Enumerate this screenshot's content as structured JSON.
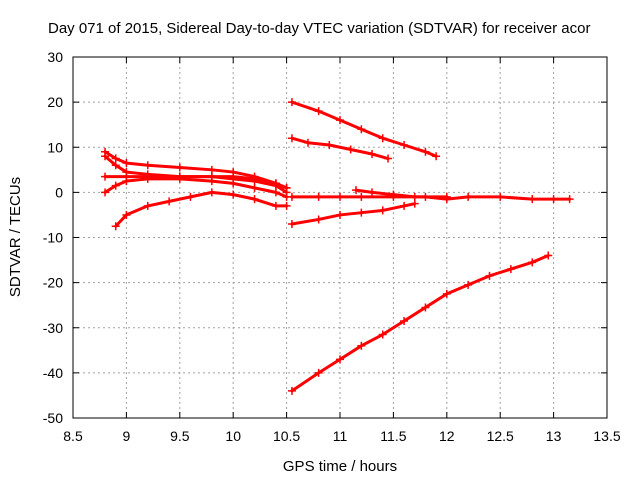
{
  "chart_data": {
    "type": "scatter",
    "title": "Day 071 of 2015, Sidereal Day-to-day VTEC variation (SDTVAR) for receiver acor",
    "xlabel": "GPS time / hours",
    "ylabel": "SDTVAR / TECUs",
    "xlim": [
      8.5,
      13.5
    ],
    "ylim": [
      -50,
      30
    ],
    "xticks": [
      "8.5",
      "9",
      "9.5",
      "10",
      "10.5",
      "11",
      "11.5",
      "12",
      "12.5",
      "13",
      "13.5"
    ],
    "yticks": [
      "-50",
      "-40",
      "-30",
      "-20",
      "-10",
      "0",
      "10",
      "20",
      "30"
    ],
    "grid": true,
    "marker": "+",
    "color": "#ff0000",
    "series": [
      {
        "name": "s1",
        "x": [
          8.8,
          8.9,
          9.0,
          9.2,
          9.5,
          9.8,
          10.0,
          10.2,
          10.4,
          10.5
        ],
        "y": [
          9,
          7.5,
          6.5,
          6,
          5.5,
          5,
          4.5,
          3.5,
          2,
          1
        ]
      },
      {
        "name": "s2",
        "x": [
          8.8,
          8.9,
          9.0,
          9.2,
          9.5,
          9.8,
          10.0,
          10.2,
          10.4,
          10.5
        ],
        "y": [
          8,
          6,
          4.5,
          4,
          3.5,
          3.5,
          3,
          2.5,
          1.5,
          0
        ]
      },
      {
        "name": "s3",
        "x": [
          8.8,
          9.0,
          9.2,
          9.5,
          9.8,
          10.0,
          10.2,
          10.4,
          10.5
        ],
        "y": [
          3.5,
          3.5,
          3.5,
          3.5,
          3.5,
          3.5,
          3,
          2,
          1
        ]
      },
      {
        "name": "s4",
        "x": [
          8.8,
          8.9,
          9.0,
          9.2,
          9.5,
          9.8,
          10.0,
          10.2,
          10.4,
          10.5
        ],
        "y": [
          0,
          1.5,
          2.5,
          3,
          3,
          2.5,
          2,
          1,
          0,
          -1
        ]
      },
      {
        "name": "s5",
        "x": [
          8.9,
          9.0,
          9.2,
          9.4,
          9.6,
          9.8,
          10.0,
          10.2,
          10.4,
          10.5
        ],
        "y": [
          -7.5,
          -5,
          -3,
          -2,
          -1,
          0,
          -0.5,
          -1.5,
          -3,
          -3
        ]
      },
      {
        "name": "s6",
        "x": [
          10.55,
          10.8,
          11.0,
          11.2,
          11.4,
          11.6,
          11.8,
          11.9
        ],
        "y": [
          20,
          18,
          16,
          14,
          12,
          10.5,
          9,
          8
        ]
      },
      {
        "name": "s7",
        "x": [
          10.55,
          10.7,
          10.9,
          11.1,
          11.3,
          11.45
        ],
        "y": [
          12,
          11,
          10.5,
          9.5,
          8.5,
          7.5
        ]
      },
      {
        "name": "s8",
        "x": [
          10.55,
          10.8,
          11.0,
          11.2,
          11.5,
          11.8,
          12.0,
          12.2,
          12.5,
          12.8,
          13.0,
          13.15
        ],
        "y": [
          -1,
          -1,
          -1,
          -1,
          -1,
          -1,
          -1.5,
          -1,
          -1,
          -1.5,
          -1.5,
          -1.5
        ]
      },
      {
        "name": "s9",
        "x": [
          11.15,
          11.3,
          11.5,
          11.7,
          12.0
        ],
        "y": [
          0.5,
          0,
          -0.5,
          -1,
          -1
        ]
      },
      {
        "name": "s10",
        "x": [
          10.55,
          10.8,
          11.0,
          11.2,
          11.4,
          11.6,
          11.7
        ],
        "y": [
          -7,
          -6,
          -5,
          -4.5,
          -4,
          -3,
          -2.5
        ]
      },
      {
        "name": "s11",
        "x": [
          10.55,
          10.8,
          11.0,
          11.2,
          11.4,
          11.6,
          11.8,
          12.0,
          12.2,
          12.4,
          12.6,
          12.8,
          12.95
        ],
        "y": [
          -44,
          -40,
          -37,
          -34,
          -31.5,
          -28.5,
          -25.5,
          -22.5,
          -20.5,
          -18.5,
          -17,
          -15.5,
          -14
        ]
      }
    ]
  }
}
